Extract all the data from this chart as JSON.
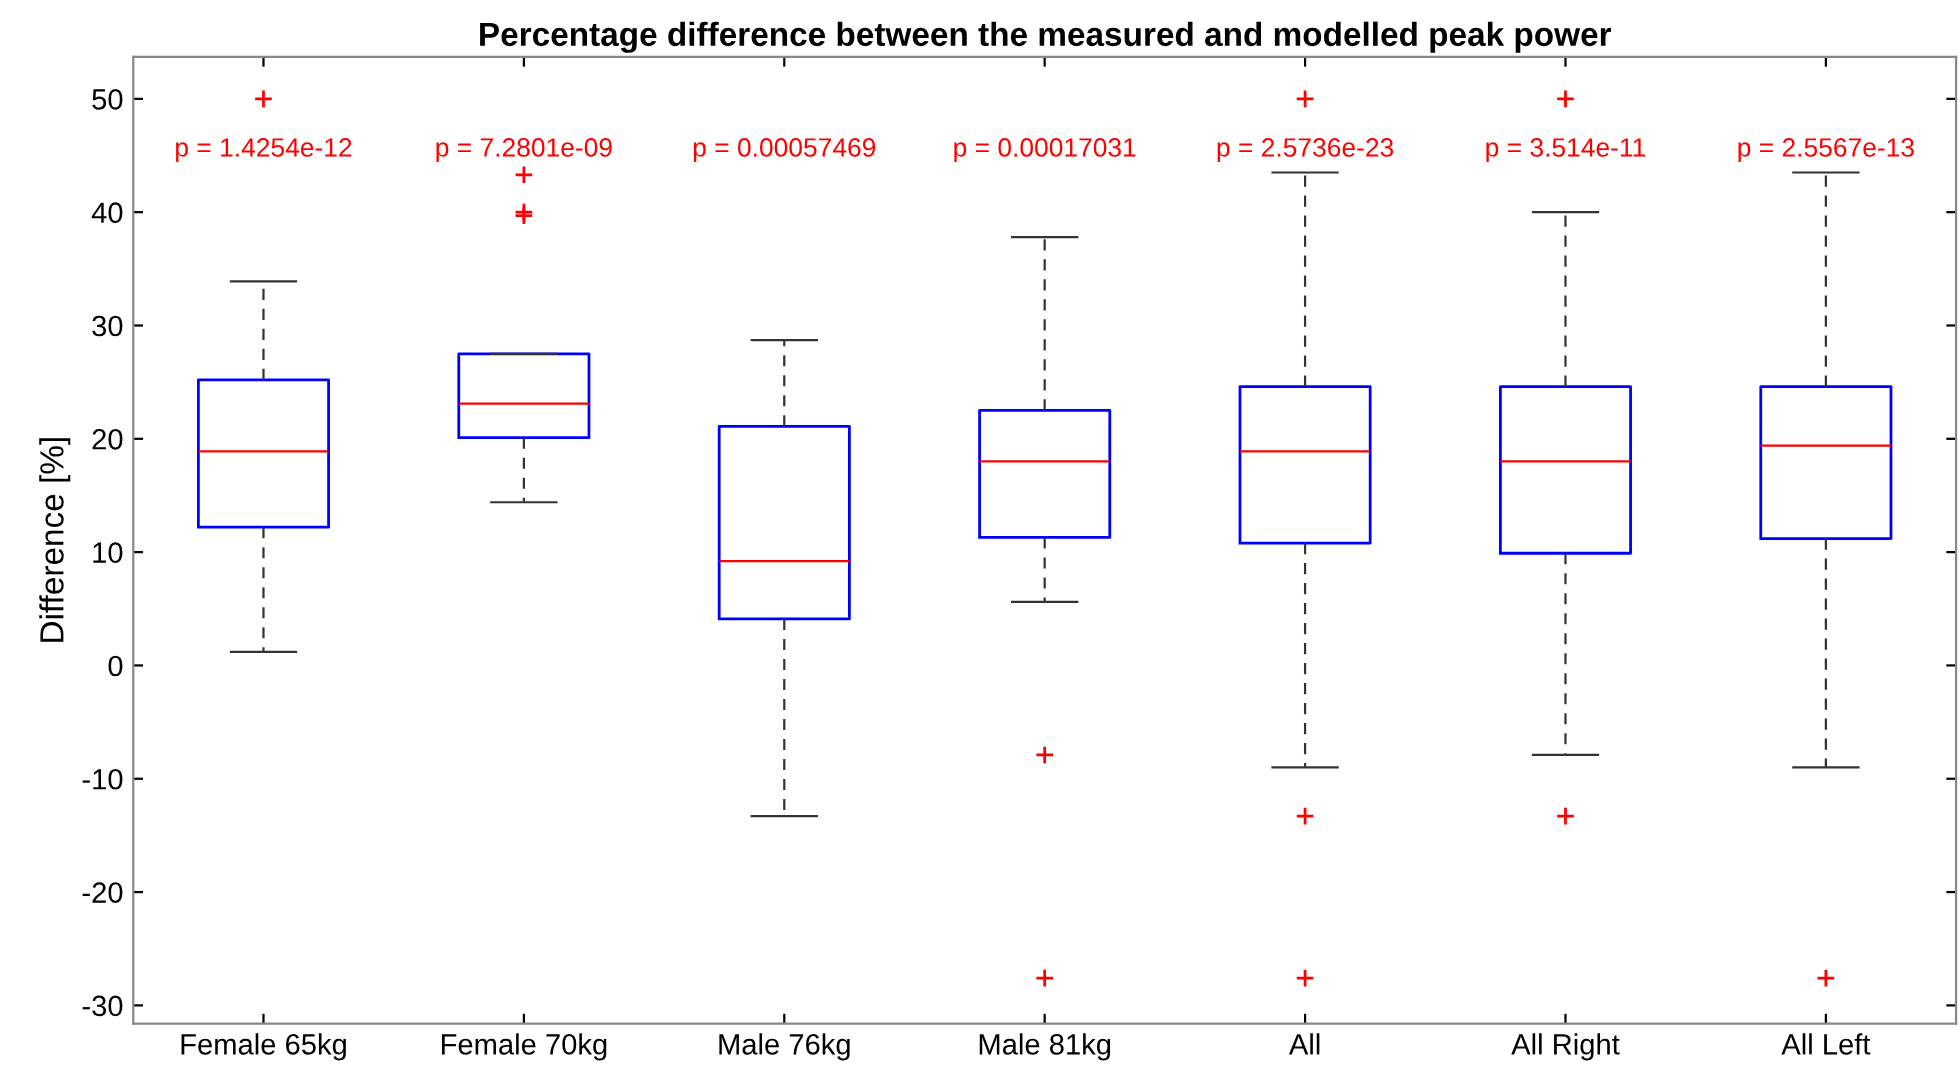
{
  "chart_data": {
    "type": "box",
    "title": "Percentage difference between the measured and modelled peak power",
    "ylabel": "Difference [%]",
    "categories": [
      "Female 65kg",
      "Female 70kg",
      "Male 76kg",
      "Male 81kg",
      "All",
      "All Right",
      "All Left"
    ],
    "series": [
      {
        "color": "#0000ff",
        "boxes": [
          {
            "low": 1.2,
            "q1": 12.2,
            "median": 18.9,
            "q3": 25.2,
            "high": 33.9,
            "outliers": [
              50.0
            ]
          },
          {
            "low": 14.4,
            "q1": 20.1,
            "median": 23.1,
            "q3": 27.5,
            "high": 27.5,
            "outliers": [
              43.3,
              40.0,
              39.7
            ]
          },
          {
            "low": -13.3,
            "q1": 4.1,
            "median": 9.2,
            "q3": 21.1,
            "high": 28.7
          },
          {
            "low": 5.6,
            "q1": 11.3,
            "median": 18.0,
            "q3": 22.5,
            "high": 37.8,
            "outliers": [
              -7.9,
              -27.6
            ]
          },
          {
            "low": -9.0,
            "q1": 10.8,
            "median": 18.9,
            "q3": 24.6,
            "high": 43.5,
            "outliers": [
              50.0,
              -13.3,
              -27.6
            ]
          },
          {
            "low": -7.9,
            "q1": 9.9,
            "median": 18.0,
            "q3": 24.6,
            "high": 40.0,
            "outliers": [
              50.0,
              -13.3
            ]
          },
          {
            "low": -9.0,
            "q1": 11.2,
            "median": 19.4,
            "q3": 24.6,
            "high": 43.5,
            "outliers": [
              -27.6
            ]
          }
        ]
      }
    ],
    "annotations": [
      "p = 1.4254e-12",
      "p = 7.2801e-09",
      "p = 0.00057469",
      "p = 0.00017031",
      "p = 2.5736e-23",
      "p = 3.514e-11",
      "p = 2.5567e-13"
    ],
    "ylim": [
      -31.6,
      53.7
    ],
    "yticks": [
      -30,
      -20,
      -10,
      0,
      10,
      20,
      30,
      40,
      50
    ],
    "grid": false
  }
}
